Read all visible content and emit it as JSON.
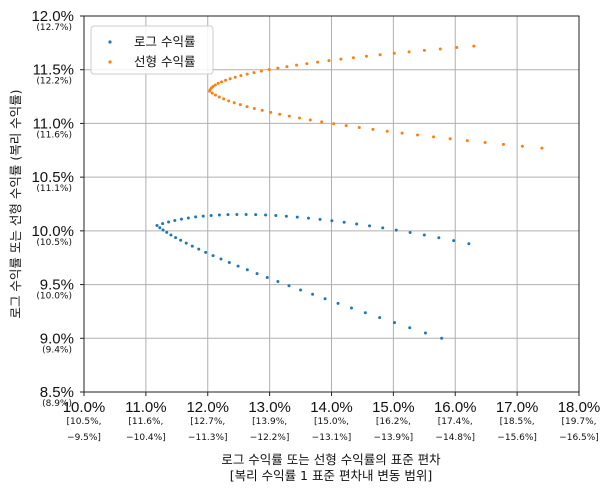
{
  "chart_data": {
    "type": "scatter",
    "title": "",
    "xlabel": "로그 수익률 또는 선형 수익률의 표준 편차",
    "xlabel_sub": "[복리 수익률 1 표준 편차내 변동 범위]",
    "ylabel": "로그 수익률 또는 선형 수익률 (복리 수익률)",
    "xlim": [
      0.1,
      0.18
    ],
    "ylim": [
      0.085,
      0.12
    ],
    "grid": true,
    "legend_position": "top-left",
    "x_ticks": [
      {
        "value": 0.1,
        "label": "10.0%",
        "sub1": "[10.5%,",
        "sub2": "−9.5%]"
      },
      {
        "value": 0.11,
        "label": "11.0%",
        "sub1": "[11.6%,",
        "sub2": "−10.4%]"
      },
      {
        "value": 0.12,
        "label": "12.0%",
        "sub1": "[12.7%,",
        "sub2": "−11.3%]"
      },
      {
        "value": 0.13,
        "label": "13.0%",
        "sub1": "[13.9%,",
        "sub2": "−12.2%]"
      },
      {
        "value": 0.14,
        "label": "14.0%",
        "sub1": "[15.0%,",
        "sub2": "−13.1%]"
      },
      {
        "value": 0.15,
        "label": "15.0%",
        "sub1": "[16.2%,",
        "sub2": "−13.9%]"
      },
      {
        "value": 0.16,
        "label": "16.0%",
        "sub1": "[17.4%,",
        "sub2": "−14.8%]"
      },
      {
        "value": 0.17,
        "label": "17.0%",
        "sub1": "[18.5%,",
        "sub2": "−15.6%]"
      },
      {
        "value": 0.18,
        "label": "18.0%",
        "sub1": "[19.7%,",
        "sub2": "−16.5%]"
      }
    ],
    "y_ticks": [
      {
        "value": 0.085,
        "label": "8.5%",
        "sub": "(8.9%)"
      },
      {
        "value": 0.09,
        "label": "9.0%",
        "sub": "(9.4%)"
      },
      {
        "value": 0.095,
        "label": "9.5%",
        "sub": "(10.0%)"
      },
      {
        "value": 0.1,
        "label": "10.0%",
        "sub": "(10.5%)"
      },
      {
        "value": 0.105,
        "label": "10.5%",
        "sub": "(11.1%)"
      },
      {
        "value": 0.11,
        "label": "11.0%",
        "sub": "(11.6%)"
      },
      {
        "value": 0.115,
        "label": "11.5%",
        "sub": "(12.2%)"
      },
      {
        "value": 0.12,
        "label": "12.0%",
        "sub": "(12.7%)"
      }
    ],
    "series": [
      {
        "name": "로그 수익률",
        "color": "#1f77b4",
        "curve": {
          "x_min": 0.1118,
          "y_center": 0.1005,
          "upper_end": [
            0.1622,
            0.0988
          ],
          "lower_end": [
            0.1578,
            0.09
          ],
          "upper_ctrl": [
            0.125,
            0.1032
          ],
          "lower_ctrl": [
            0.118,
            0.0975
          ],
          "points": 60
        }
      },
      {
        "name": "선형 수익률",
        "color": "#ff7f0e",
        "curve": {
          "x_min": 0.1203,
          "y_center": 0.113,
          "upper_end": [
            0.163,
            0.1172
          ],
          "lower_end": [
            0.174,
            0.1077
          ],
          "upper_ctrl": [
            0.121,
            0.1152
          ],
          "lower_ctrl": [
            0.126,
            0.1103
          ],
          "points": 60
        }
      }
    ]
  }
}
